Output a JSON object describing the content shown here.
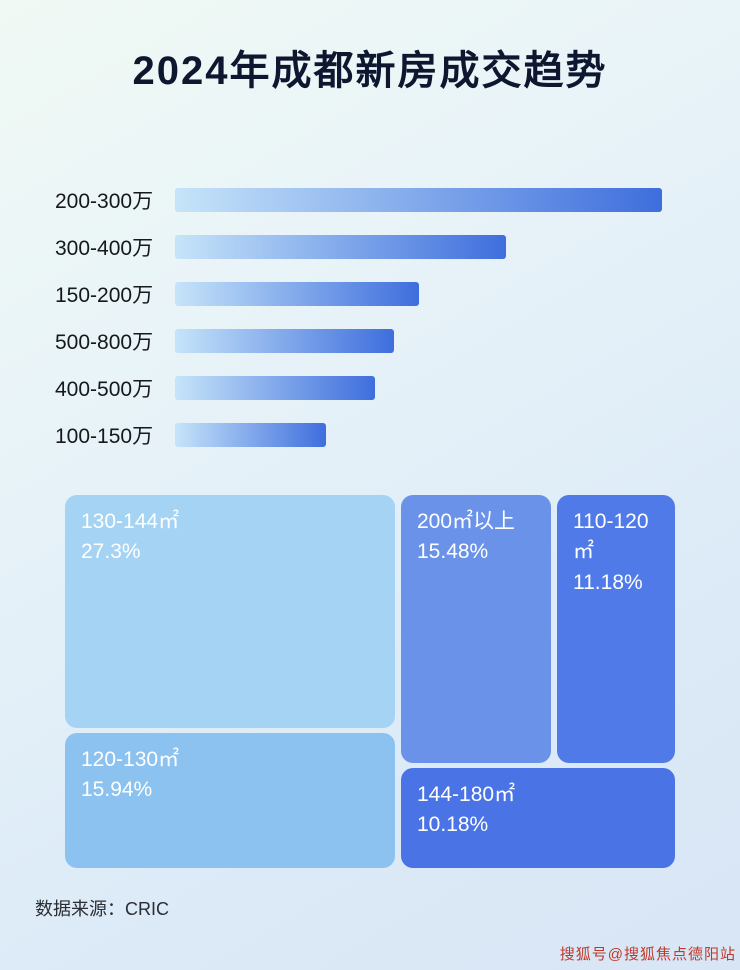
{
  "page": {
    "title": "2024年成都新房成交趋势",
    "source_label": "数据来源：CRIC",
    "watermark": "搜狐号@搜狐焦点德阳站"
  },
  "chart_data": [
    {
      "type": "bar",
      "orientation": "horizontal",
      "title": "2024年成都新房成交趋势",
      "categories": [
        "200-300万",
        "300-400万",
        "150-200万",
        "500-800万",
        "400-500万",
        "100-150万"
      ],
      "values": [
        100,
        68,
        50,
        45,
        41,
        31
      ],
      "value_note": "relative bar lengths, no numeric axis shown",
      "xlim": [
        0,
        100
      ],
      "grid": false,
      "legend": false,
      "bar_gradient": [
        "#c6e4f9",
        "#3e6edd"
      ]
    },
    {
      "type": "treemap",
      "items": [
        {
          "label": "130-144㎡",
          "value": "27.3%",
          "color": "#a4d3f4"
        },
        {
          "label": "120-130㎡",
          "value": "15.94%",
          "color": "#8cc2ef"
        },
        {
          "label": "200㎡以上",
          "value": "15.48%",
          "color": "#6a92e8"
        },
        {
          "label": "110-120㎡",
          "value": "11.18%",
          "color": "#4f7ae8"
        },
        {
          "label": "144-180㎡",
          "value": "10.18%",
          "color": "#4a74e5"
        }
      ]
    }
  ]
}
